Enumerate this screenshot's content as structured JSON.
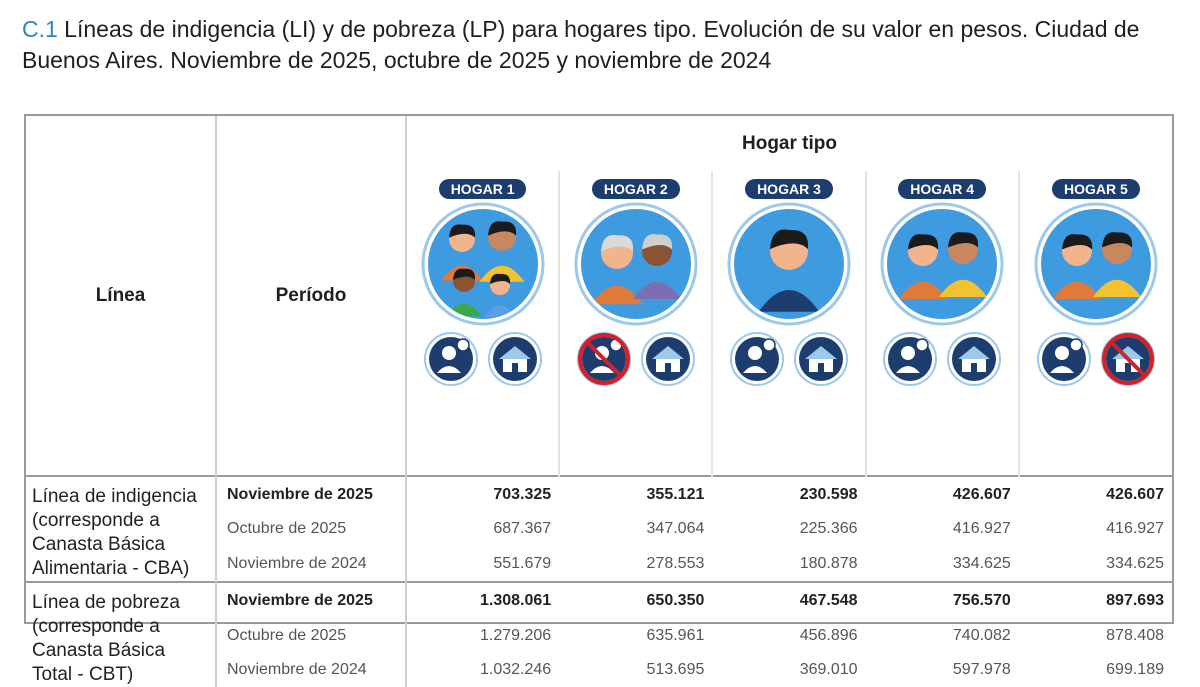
{
  "title": {
    "code": "C.1",
    "text": " Líneas de indigencia (LI) y de pobreza (LP) para hogares tipo. Evolución de su valor en pesos. Ciudad de Buenos Aires. Noviembre de 2025, octubre de 2025 y noviembre de 2024"
  },
  "header": {
    "linea": "Línea",
    "periodo": "Período",
    "hogar_tipo": "Hogar tipo",
    "hogares": [
      "HOGAR 1",
      "HOGAR 2",
      "HOGAR 3",
      "HOGAR 4",
      "HOGAR 5"
    ]
  },
  "icons": {
    "hogares": [
      {
        "portrait": "family-of-four-icon",
        "work": "worker-icon",
        "home": "house-icon",
        "work_crossed": false,
        "home_crossed": false
      },
      {
        "portrait": "elderly-couple-icon",
        "work": "worker-icon",
        "home": "house-icon",
        "work_crossed": true,
        "home_crossed": false
      },
      {
        "portrait": "single-adult-icon",
        "work": "worker-icon",
        "home": "house-icon",
        "work_crossed": false,
        "home_crossed": false
      },
      {
        "portrait": "adult-couple-icon",
        "work": "worker-icon",
        "home": "house-icon",
        "work_crossed": false,
        "home_crossed": false
      },
      {
        "portrait": "adult-couple-icon",
        "work": "worker-icon",
        "home": "house-icon",
        "work_crossed": false,
        "home_crossed": true
      }
    ]
  },
  "groups": [
    {
      "label": [
        "Línea de indigencia",
        "(corresponde a",
        "Canasta Básica",
        "Alimentaria - CBA)"
      ],
      "rows": [
        {
          "periodo": "Noviembre de 2025",
          "bold": true,
          "values": [
            "703.325",
            "355.121",
            "230.598",
            "426.607",
            "426.607"
          ]
        },
        {
          "periodo": "Octubre de 2025",
          "bold": false,
          "values": [
            "687.367",
            "347.064",
            "225.366",
            "416.927",
            "416.927"
          ]
        },
        {
          "periodo": "Noviembre de 2024",
          "bold": false,
          "values": [
            "551.679",
            "278.553",
            "180.878",
            "334.625",
            "334.625"
          ]
        }
      ]
    },
    {
      "label": [
        "Línea de pobreza",
        "(corresponde a",
        "Canasta Básica",
        "Total - CBT)"
      ],
      "rows": [
        {
          "periodo": "Noviembre de 2025",
          "bold": true,
          "values": [
            "1.308.061",
            "650.350",
            "467.548",
            "756.570",
            "897.693"
          ]
        },
        {
          "periodo": "Octubre de 2025",
          "bold": false,
          "values": [
            "1.279.206",
            "635.961",
            "456.896",
            "740.082",
            "878.408"
          ]
        },
        {
          "periodo": "Noviembre de 2024",
          "bold": false,
          "values": [
            "1.032.246",
            "513.695",
            "369.010",
            "597.978",
            "699.189"
          ]
        }
      ]
    }
  ],
  "colors": {
    "accent": "#2a87c8",
    "pill": "#1d3d6e",
    "portrait_bg": "#3f9be0",
    "skin": "#f2b48c",
    "orange_shirt": "#e07a3b",
    "yellow_shirt": "#f2c230",
    "cross": "#d62027"
  }
}
